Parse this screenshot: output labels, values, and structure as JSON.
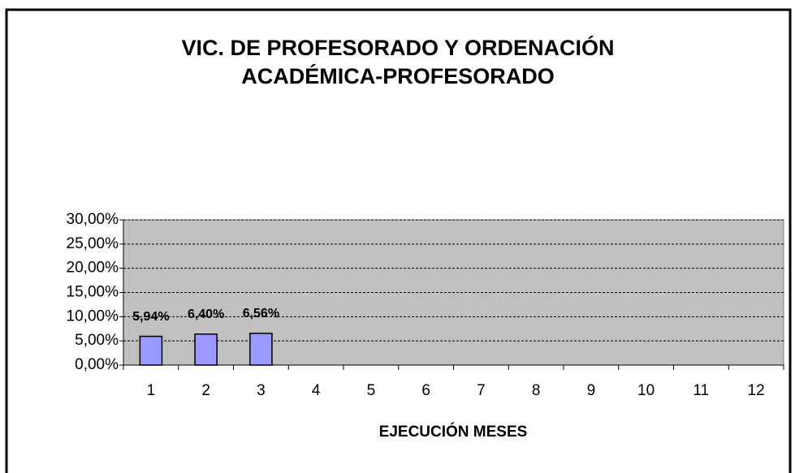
{
  "chart_data": {
    "type": "bar",
    "title": [
      "VIC. DE PROFESORADO Y ORDENACIÓN",
      "ACADÉMICA-PROFESORADO"
    ],
    "x_label": "EJECUCIÓN MESES",
    "categories": [
      "1",
      "2",
      "3",
      "4",
      "5",
      "6",
      "7",
      "8",
      "9",
      "10",
      "11",
      "12"
    ],
    "values": [
      5.94,
      6.4,
      6.56,
      null,
      null,
      null,
      null,
      null,
      null,
      null,
      null,
      null
    ],
    "value_labels": [
      "5,94%",
      "6,40%",
      "6,56%",
      null,
      null,
      null,
      null,
      null,
      null,
      null,
      null,
      null
    ],
    "color": "#9999ff",
    "ylim": [
      0,
      30
    ],
    "yticks": [
      {
        "value": 0,
        "label": "0,00%"
      },
      {
        "value": 5,
        "label": "5,00%"
      },
      {
        "value": 10,
        "label": "10,00%"
      },
      {
        "value": 15,
        "label": "15,00%"
      },
      {
        "value": 20,
        "label": "20,00%"
      },
      {
        "value": 25,
        "label": "25,00%"
      },
      {
        "value": 30,
        "label": "30,00%"
      }
    ],
    "grid": true
  }
}
